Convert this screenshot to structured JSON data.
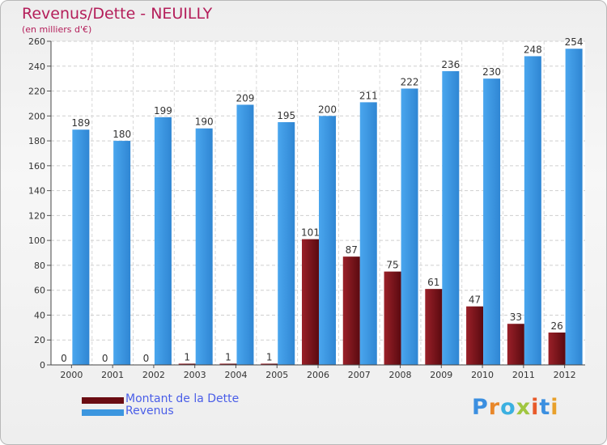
{
  "chart_data": {
    "type": "bar",
    "title": "Revenus/Dette - NEUILLY",
    "subtitle": "(en milliers d'€)",
    "categories": [
      "2000",
      "2001",
      "2002",
      "2003",
      "2004",
      "2005",
      "2006",
      "2007",
      "2008",
      "2009",
      "2010",
      "2011",
      "2012"
    ],
    "series": [
      {
        "name": "Montant de la Dette",
        "color": "#7a1018",
        "values": [
          0,
          0,
          0,
          1,
          1,
          1,
          101,
          87,
          75,
          61,
          47,
          33,
          26
        ]
      },
      {
        "name": "Revenus",
        "color": "#3c96df",
        "values": [
          189,
          180,
          199,
          190,
          209,
          195,
          200,
          211,
          222,
          236,
          230,
          248,
          254
        ]
      }
    ],
    "ylim": [
      0,
      260
    ],
    "yticks": [
      0,
      20,
      40,
      60,
      80,
      100,
      120,
      140,
      160,
      180,
      200,
      220,
      240,
      260
    ],
    "grid": true,
    "legend_position": "bottom-left"
  },
  "logo": {
    "letters": [
      {
        "char": "P",
        "color": "#3b8fe0"
      },
      {
        "char": "r",
        "color": "#e8872a"
      },
      {
        "char": "o",
        "color": "#3bb0e0"
      },
      {
        "char": "x",
        "color": "#a0c640"
      },
      {
        "char": "i",
        "color": "#e85a2a"
      },
      {
        "char": "t",
        "color": "#3b8fe0"
      },
      {
        "char": "i",
        "color": "#e8a02a"
      }
    ]
  }
}
